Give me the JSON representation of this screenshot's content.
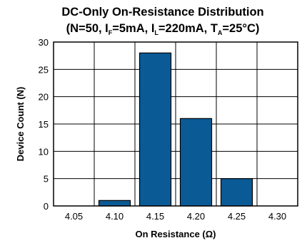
{
  "chart_data": {
    "type": "bar",
    "title_line1": "DC-Only On-Resistance Distribution",
    "title_line2": {
      "part1": "(N=50, I",
      "sub1": "F",
      "part2": "=5mA, I",
      "sub2": "L",
      "part3": "=220mA, T",
      "sub3": "A",
      "part4": "=25°C)"
    },
    "categories": [
      "4.05",
      "4.10",
      "4.15",
      "4.20",
      "4.25",
      "4.30"
    ],
    "values": [
      0,
      1,
      28,
      16,
      5,
      0
    ],
    "xlabel": "On Resistance (Ω)",
    "ylabel": "Device Count (N)",
    "ylim": [
      0,
      30
    ],
    "yticks": [
      "0",
      "5",
      "10",
      "15",
      "20",
      "25",
      "30"
    ],
    "bar_color": "#0a5a96",
    "grid": true
  }
}
